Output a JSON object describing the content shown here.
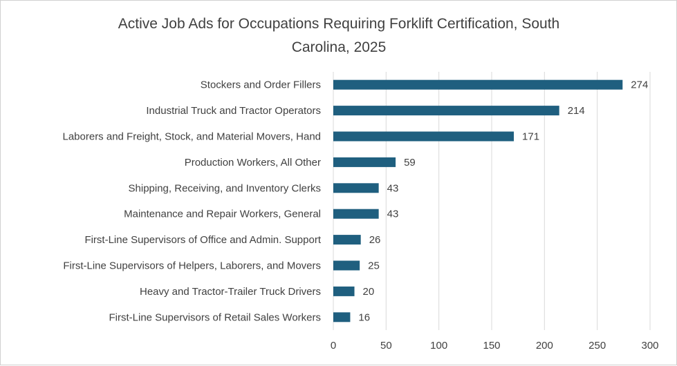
{
  "chart_data": {
    "type": "bar",
    "orientation": "horizontal",
    "title": "Active Job Ads for Occupations Requiring Forklift Certification, South Carolina, 2025",
    "title_lines": [
      "Active Job Ads for Occupations Requiring Forklift Certification, South",
      "Carolina, 2025"
    ],
    "categories": [
      "Stockers and Order Fillers",
      "Industrial Truck and Tractor Operators",
      "Laborers and Freight, Stock, and Material Movers, Hand",
      "Production Workers, All Other",
      "Shipping, Receiving, and Inventory Clerks",
      "Maintenance and Repair Workers, General",
      "First-Line Supervisors of Office and Admin. Support",
      "First-Line Supervisors of Helpers, Laborers, and Movers",
      "Heavy and Tractor-Trailer Truck Drivers",
      "First-Line Supervisors of Retail Sales Workers"
    ],
    "values": [
      274,
      214,
      171,
      59,
      43,
      43,
      26,
      25,
      20,
      16
    ],
    "xlabel": "",
    "ylabel": "",
    "xlim": [
      0,
      300
    ],
    "xticks": [
      0,
      50,
      100,
      150,
      200,
      250,
      300
    ],
    "grid": "vertical",
    "legend": "none",
    "data_labels": true,
    "bar_color": "#1f5f7f"
  }
}
